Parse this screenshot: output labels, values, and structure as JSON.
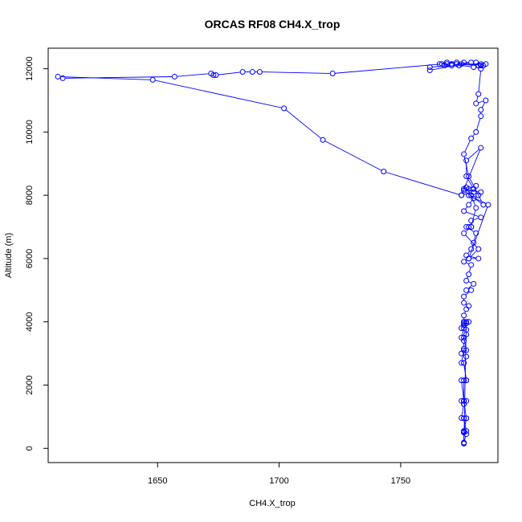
{
  "chart_data": {
    "type": "line",
    "title": "ORCAS RF08 CH4.X_trop",
    "xlabel": "CH4.X_trop",
    "ylabel": "Altitude (m)",
    "xlim": [
      1605,
      1790
    ],
    "ylim": [
      -450,
      12650
    ],
    "xticks": [
      1650,
      1700,
      1750
    ],
    "yticks": [
      0,
      2000,
      4000,
      6000,
      8000,
      10000,
      12000
    ],
    "grid": false,
    "legend": "none",
    "series": [
      {
        "color": "#0000ff",
        "marker": "open-circle",
        "x": [
          1776,
          1776,
          1776,
          1777,
          1776,
          1777,
          1776,
          1776,
          1775,
          1777,
          1776,
          1775,
          1776,
          1777,
          1776,
          1775,
          1776,
          1775,
          1776,
          1777,
          1776,
          1776,
          1777,
          1776,
          1776,
          1776,
          1777,
          1776,
          1775,
          1776,
          1776,
          1777,
          1775,
          1776,
          1776,
          1777,
          1776,
          1777,
          1775,
          1776,
          1776,
          1777,
          1777,
          1776,
          1776,
          1778,
          1777,
          1776,
          1776,
          1777,
          1778,
          1776,
          1776,
          1779,
          1777,
          1780,
          1777,
          1778,
          1779,
          1776,
          1778,
          1782,
          1777,
          1779,
          1780,
          1781,
          1777,
          1778,
          1779,
          1779,
          1783,
          1776,
          1778,
          1780,
          1782,
          1783,
          1776,
          1777,
          1779,
          1781,
          1779,
          1776,
          1782,
          1778,
          1786,
          1778,
          1780,
          1777,
          1777,
          1783,
          1775,
          1780,
          1778,
          1781,
          1776,
          1784,
          1778,
          1776,
          1779,
          1781,
          1783,
          1783,
          1785,
          1781,
          1782,
          1783,
          1781,
          1784,
          1782,
          1785,
          1783,
          1783,
          1775,
          1762,
          1762,
          1771,
          1768,
          1769,
          1766,
          1769,
          1773,
          1774,
          1776,
          1779,
          1773,
          1782,
          1780,
          1771,
          1771,
          1767,
          1722,
          1692,
          1689,
          1685,
          1674,
          1673,
          1672,
          1657,
          1611,
          1609,
          1648,
          1702,
          1718,
          1743,
          1775
        ],
        "y": [
          170,
          170,
          550,
          550,
          950,
          950,
          1500,
          1500,
          2150,
          2150,
          2700,
          2700,
          3100,
          3100,
          3500,
          3500,
          3800,
          3800,
          4000,
          4000,
          150,
          180,
          450,
          520,
          500,
          500,
          950,
          950,
          960,
          1400,
          1500,
          1500,
          1500,
          1400,
          2150,
          2150,
          2700,
          2900,
          3000,
          3150,
          3400,
          3600,
          3750,
          3900,
          3950,
          4000,
          3950,
          4000,
          4200,
          4400,
          4500,
          4600,
          4800,
          5000,
          5000,
          5200,
          5300,
          5500,
          5800,
          5900,
          6000,
          6000,
          6100,
          6300,
          6500,
          6800,
          7000,
          7000,
          7000,
          7200,
          7300,
          7500,
          7700,
          7900,
          8000,
          8100,
          8200,
          8250,
          8000,
          7600,
          7000,
          6800,
          6300,
          6000,
          7700,
          8000,
          8200,
          8600,
          9100,
          9500,
          8000,
          8100,
          8200,
          8300,
          8150,
          7700,
          8600,
          9300,
          9800,
          10000,
          10500,
          10700,
          11000,
          10900,
          11200,
          12000,
          12200,
          12100,
          12100,
          12150,
          12100,
          12150,
          12150,
          11950,
          12050,
          12100,
          12100,
          12150,
          12150,
          12200,
          12200,
          12100,
          12200,
          12200,
          12150,
          12100,
          12050,
          12150,
          12150,
          12150,
          11850,
          11900,
          11900,
          11900,
          11800,
          11800,
          11850,
          11750,
          11700,
          11750,
          11650,
          10750,
          9750,
          8750,
          8000
        ]
      }
    ]
  }
}
